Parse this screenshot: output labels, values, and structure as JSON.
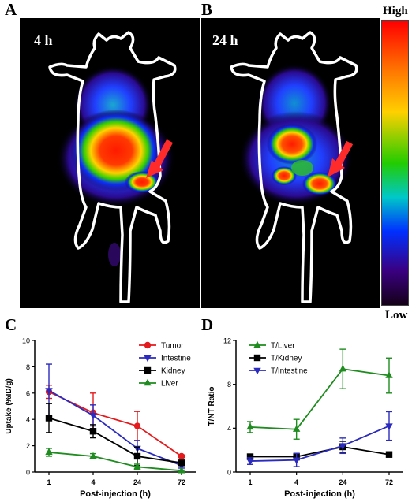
{
  "panels": {
    "a": {
      "letter": "A",
      "time": "4 h"
    },
    "b": {
      "letter": "B",
      "time": "24 h"
    },
    "c": {
      "letter": "C"
    },
    "d": {
      "letter": "D"
    }
  },
  "colorbar": {
    "high": "High",
    "low": "Low"
  },
  "chart_data": [
    {
      "type": "line",
      "xlabel": "Post-injection (h)",
      "ylabel": "Uptake (%ID/g)",
      "categories": [
        "1",
        "4",
        "24",
        "72"
      ],
      "ylim": [
        0,
        10
      ],
      "yticks": [
        "0",
        "2",
        "4",
        "6",
        "8",
        "10"
      ],
      "legend_position": "top-right",
      "series": [
        {
          "name": "Tumor",
          "color": "#e41a1c",
          "marker": "circle",
          "values": [
            6.1,
            4.5,
            3.5,
            1.2
          ],
          "errors": [
            0.5,
            1.5,
            1.1,
            0.1
          ]
        },
        {
          "name": "Intestine",
          "color": "#2b2bbf",
          "marker": "triangle-down",
          "values": [
            6.2,
            4.3,
            1.8,
            0.5
          ],
          "errors": [
            2.0,
            0.8,
            0.6,
            0.2
          ]
        },
        {
          "name": "Kidney",
          "color": "#000000",
          "marker": "square",
          "values": [
            4.1,
            3.1,
            1.2,
            0.7
          ],
          "errors": [
            1.1,
            0.5,
            0.7,
            0.1
          ]
        },
        {
          "name": "Liver",
          "color": "#1e8c1e",
          "marker": "triangle-up",
          "values": [
            1.5,
            1.2,
            0.4,
            0.1
          ],
          "errors": [
            0.3,
            0.2,
            0.2,
            0.05
          ]
        }
      ]
    },
    {
      "type": "line",
      "xlabel": "Post-injection (h)",
      "ylabel": "T/NT Ratio",
      "categories": [
        "1",
        "4",
        "24",
        "72"
      ],
      "ylim": [
        0,
        12
      ],
      "yticks": [
        "0",
        "4",
        "8",
        "12"
      ],
      "legend_position": "top-left",
      "series": [
        {
          "name": "T/Liver",
          "color": "#1e8c1e",
          "marker": "triangle-up",
          "values": [
            4.1,
            3.9,
            9.4,
            8.8
          ],
          "errors": [
            0.5,
            0.9,
            1.8,
            1.6
          ]
        },
        {
          "name": "T/Kidney",
          "color": "#000000",
          "marker": "square",
          "values": [
            1.4,
            1.4,
            2.3,
            1.6
          ],
          "errors": [
            0.2,
            0.3,
            0.5,
            0.1
          ]
        },
        {
          "name": "T/Intestine",
          "color": "#2b2bbf",
          "marker": "triangle-down",
          "values": [
            1.0,
            1.1,
            2.4,
            4.2
          ],
          "errors": [
            0.3,
            0.6,
            0.7,
            1.3
          ]
        }
      ]
    }
  ]
}
